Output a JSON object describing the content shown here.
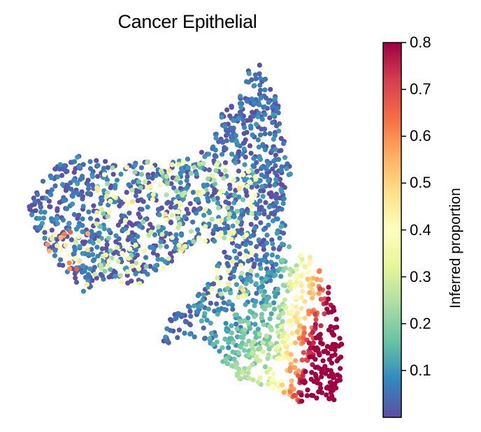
{
  "chart_data": {
    "type": "scatter",
    "title": "Cancer Epithelial",
    "xlabel": "",
    "ylabel": "",
    "axes_visible": false,
    "colormap": "Spectral_r",
    "colorbar": {
      "label": "Inferred proportion",
      "range": [
        0.0,
        0.8
      ],
      "ticks": [
        0.1,
        0.2,
        0.3,
        0.4,
        0.5,
        0.6,
        0.7,
        0.8
      ],
      "tick_labels": [
        "0.1",
        "0.2",
        "0.3",
        "0.4",
        "0.5",
        "0.6",
        "0.7",
        "0.8"
      ],
      "colors": [
        "#5e4fa2",
        "#3288bd",
        "#66c2a5",
        "#abdda4",
        "#e6f598",
        "#ffffbf",
        "#fee08b",
        "#fdae61",
        "#f46d43",
        "#d53e4f",
        "#9e0142"
      ]
    },
    "regions": [
      {
        "name": "left arm",
        "x_range": [
          0.0,
          0.18
        ],
        "y_range": [
          0.45,
          0.75
        ],
        "value_level": "low",
        "typical_value": 0.05
      },
      {
        "name": "top spike",
        "x_range": [
          0.55,
          0.72
        ],
        "y_range": [
          0.55,
          1.0
        ],
        "value_level": "low",
        "typical_value": 0.04
      },
      {
        "name": "central body",
        "x_range": [
          0.2,
          0.68
        ],
        "y_range": [
          0.3,
          0.75
        ],
        "value_level": "low-mid",
        "typical_value": 0.12
      },
      {
        "name": "lower lobe",
        "x_range": [
          0.55,
          0.85
        ],
        "y_range": [
          0.0,
          0.35
        ],
        "value_level": "mid",
        "typical_value": 0.38
      },
      {
        "name": "right edge",
        "x_range": [
          0.78,
          0.98
        ],
        "y_range": [
          0.05,
          0.45
        ],
        "value_level": "high",
        "typical_value": 0.78
      }
    ],
    "point_count_approx": 2000
  }
}
